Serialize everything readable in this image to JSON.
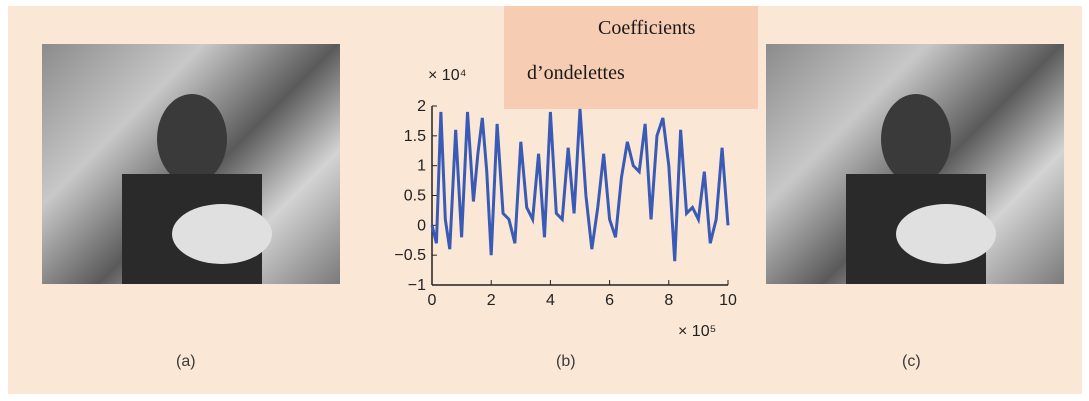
{
  "overlay": {
    "line1": "Coefficients",
    "line2": "d’ondelettes"
  },
  "captions": {
    "a": "(a)",
    "b": "(b)",
    "c": "(c)"
  },
  "images": {
    "a": "grayscale photograph of a person in a feathered hat",
    "c": "grayscale photograph of a person in a feathered hat"
  },
  "colors": {
    "panel_background": "#fbe7d6",
    "overlay_background": "#f6cdb2",
    "series": "#3a5bb5"
  },
  "chart_data": {
    "type": "line",
    "title": "",
    "xlabel": "",
    "ylabel": "",
    "x_multiplier_label": "× 10⁵",
    "y_multiplier_label": "× 10⁴",
    "xlim": [
      0,
      10
    ],
    "ylim": [
      -1,
      2
    ],
    "x_ticks": [
      0,
      2,
      4,
      6,
      8,
      10
    ],
    "x_tick_labels": [
      "0",
      "2",
      "4",
      "6",
      "8",
      "10"
    ],
    "y_ticks": [
      -1,
      -0.5,
      0,
      0.5,
      1,
      1.5,
      2
    ],
    "y_tick_labels": [
      "−1",
      "−0.5",
      "0",
      "0.5",
      "1",
      "1.5",
      "2"
    ],
    "grid": false,
    "series": [
      {
        "x": [
          0,
          0.15,
          0.3,
          0.45,
          0.6,
          0.8,
          1.0,
          1.2,
          1.4,
          1.55,
          1.7,
          1.85,
          2.0,
          2.2,
          2.4,
          2.6,
          2.8,
          3.0,
          3.2,
          3.4,
          3.6,
          3.8,
          4.0,
          4.2,
          4.4,
          4.6,
          4.8,
          5.0,
          5.2,
          5.4,
          5.6,
          5.8,
          6.0,
          6.2,
          6.4,
          6.6,
          6.8,
          7.0,
          7.2,
          7.4,
          7.6,
          7.8,
          8.0,
          8.2,
          8.4,
          8.6,
          8.8,
          9.0,
          9.2,
          9.4,
          9.6,
          9.8,
          10.0
        ],
        "values": [
          0,
          -0.3,
          1.9,
          0.1,
          -0.4,
          1.6,
          -0.2,
          1.9,
          0.4,
          1.2,
          1.8,
          0.9,
          -0.5,
          1.7,
          0.2,
          0.1,
          -0.3,
          1.4,
          0.3,
          0.1,
          1.2,
          -0.2,
          1.9,
          0.2,
          0.1,
          1.3,
          0.2,
          1.95,
          0.5,
          -0.4,
          0.3,
          1.2,
          0.1,
          -0.2,
          0.8,
          1.4,
          1.0,
          0.9,
          1.7,
          0.1,
          1.5,
          1.8,
          1.0,
          -0.6,
          1.6,
          0.2,
          0.3,
          0.1,
          0.9,
          -0.3,
          0.1,
          1.3,
          0.0
        ]
      }
    ]
  }
}
